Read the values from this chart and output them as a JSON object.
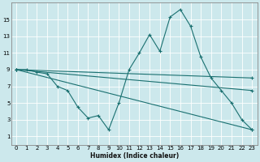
{
  "xlabel": "Humidex (Indice chaleur)",
  "bg_color": "#cce8ec",
  "grid_color": "#b0d8de",
  "line_color": "#1a7070",
  "xlim": [
    -0.5,
    23.5
  ],
  "ylim": [
    0,
    17
  ],
  "yticks": [
    1,
    3,
    5,
    7,
    9,
    11,
    13,
    15
  ],
  "xticks": [
    0,
    1,
    2,
    3,
    4,
    5,
    6,
    7,
    8,
    9,
    10,
    11,
    12,
    13,
    14,
    15,
    16,
    17,
    18,
    19,
    20,
    21,
    22,
    23
  ],
  "series": [
    {
      "x": [
        0,
        1,
        2,
        3,
        4,
        5,
        6,
        7,
        8,
        9,
        10,
        11,
        12,
        13,
        14,
        15,
        16,
        17,
        18,
        19,
        20,
        21,
        22,
        23
      ],
      "y": [
        9,
        9,
        8.7,
        8.5,
        7.0,
        6.5,
        4.5,
        3.2,
        3.5,
        1.8,
        5.0,
        9.0,
        11.0,
        13.2,
        11.2,
        15.3,
        16.2,
        14.2,
        10.5,
        8.0,
        6.5,
        5.0,
        3.0,
        1.8
      ]
    },
    {
      "x": [
        0,
        23
      ],
      "y": [
        9.0,
        8.0
      ]
    },
    {
      "x": [
        0,
        23
      ],
      "y": [
        9.0,
        6.5
      ]
    },
    {
      "x": [
        0,
        23
      ],
      "y": [
        9.0,
        1.8
      ]
    }
  ]
}
